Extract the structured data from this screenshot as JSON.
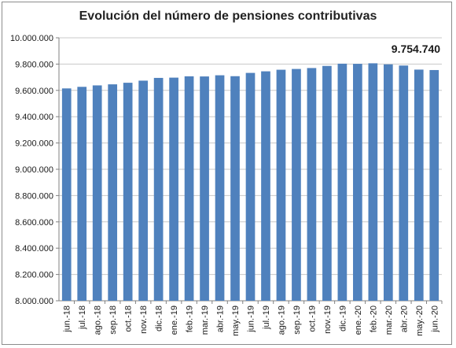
{
  "chart_data": {
    "type": "bar",
    "title": "Evolución del número de pensiones contributivas",
    "xlabel": "",
    "ylabel": "",
    "ylim": [
      8000000,
      10000000
    ],
    "yticks": [
      8000000,
      8200000,
      8400000,
      8600000,
      8800000,
      9000000,
      9200000,
      9400000,
      9600000,
      9800000,
      10000000
    ],
    "ytick_labels": [
      "8.000.000",
      "8.200.000",
      "8.400.000",
      "8.600.000",
      "8.800.000",
      "9.000.000",
      "9.200.000",
      "9.400.000",
      "9.600.000",
      "9.800.000",
      "10.000.000"
    ],
    "grid": true,
    "legend": "none",
    "bar_color": "#4f81bd",
    "categories": [
      "jun.-18",
      "jul.-18",
      "ago.-18",
      "sep.-18",
      "oct.-18",
      "nov.-18",
      "dic.-18",
      "ene.-19",
      "feb.-19",
      "mar.-19",
      "abr.-19",
      "may.-19",
      "jun.-19",
      "jul.-19",
      "ago.-19",
      "sep.-19",
      "oct.-19",
      "nov.-19",
      "dic.-19",
      "ene.-20",
      "feb.-20",
      "mar.-20",
      "abr.-20",
      "may.-20",
      "jun.-20"
    ],
    "values": [
      9615000,
      9627000,
      9638000,
      9646000,
      9658000,
      9674000,
      9695000,
      9697000,
      9707000,
      9706000,
      9715000,
      9708000,
      9733000,
      9745000,
      9757000,
      9763000,
      9770000,
      9786000,
      9803000,
      9802000,
      9806000,
      9798000,
      9789000,
      9758000,
      9754740
    ],
    "annotation": {
      "text": "9.754.740",
      "category": "jun.-20"
    }
  }
}
